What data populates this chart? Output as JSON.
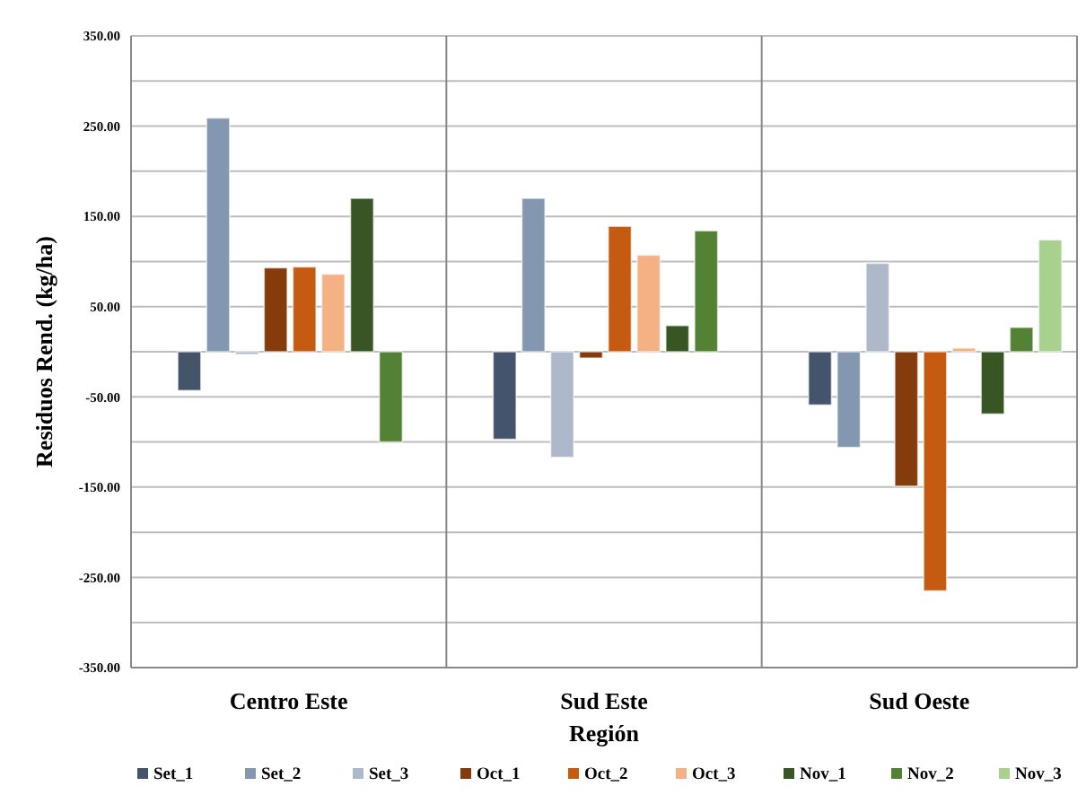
{
  "chart_data": {
    "type": "bar",
    "xlabel": "Región",
    "ylabel": "Residuos Rend. (kg/ha)",
    "categories": [
      "Centro Este",
      "Sud Este",
      "Sud Oeste"
    ],
    "series": [
      {
        "name": "Set_1",
        "color": "#44546a",
        "values": [
          -43,
          -97,
          -59
        ]
      },
      {
        "name": "Set_2",
        "color": "#8497b0",
        "values": [
          259,
          170,
          -106
        ]
      },
      {
        "name": "Set_3",
        "color": "#adb9ca",
        "values": [
          -3,
          -117,
          98
        ]
      },
      {
        "name": "Oct_1",
        "color": "#843c0c",
        "values": [
          93,
          -7,
          -149
        ]
      },
      {
        "name": "Oct_2",
        "color": "#c55a11",
        "values": [
          94,
          139,
          -265
        ]
      },
      {
        "name": "Oct_3",
        "color": "#f4b183",
        "values": [
          86,
          107,
          4
        ]
      },
      {
        "name": "Nov_1",
        "color": "#375623",
        "values": [
          170,
          29,
          -69
        ]
      },
      {
        "name": "Nov_2",
        "color": "#548235",
        "values": [
          -100,
          134,
          27
        ]
      },
      {
        "name": "Nov_3",
        "color": "#a9d18e",
        "values": [
          null,
          null,
          124
        ]
      }
    ],
    "ylim": [
      -350,
      350
    ],
    "yticks": [
      {
        "value": -350,
        "label": "-350.00"
      },
      {
        "value": -300,
        "label": null
      },
      {
        "value": -250,
        "label": "-250.00"
      },
      {
        "value": -200,
        "label": null
      },
      {
        "value": -150,
        "label": "-150.00"
      },
      {
        "value": -100,
        "label": null
      },
      {
        "value": -50,
        "label": "-50.00"
      },
      {
        "value": 0,
        "label": null
      },
      {
        "value": 50,
        "label": "50.00"
      },
      {
        "value": 100,
        "label": null
      },
      {
        "value": 150,
        "label": "150.00"
      },
      {
        "value": 200,
        "label": null
      },
      {
        "value": 250,
        "label": "250.00"
      },
      {
        "value": 300,
        "label": null
      },
      {
        "value": 350,
        "label": "350.00"
      }
    ],
    "grid": true,
    "legend": "bottom"
  }
}
